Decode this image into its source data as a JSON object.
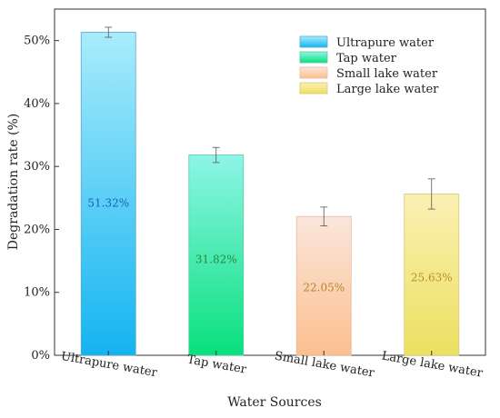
{
  "chart_data": {
    "type": "bar",
    "title": "",
    "xlabel": "Water Sources",
    "ylabel": "Degradation rate  (%)",
    "ylim": [
      0,
      55
    ],
    "yticks": [
      0,
      10,
      20,
      30,
      40,
      50
    ],
    "ytick_labels": [
      "0%",
      "10%",
      "20%",
      "30%",
      "40%",
      "50%"
    ],
    "categories": [
      "Ultrapure water",
      "Tap water",
      "Small lake water",
      "Large lake water"
    ],
    "values": [
      51.32,
      31.82,
      22.05,
      25.63
    ],
    "errors": [
      0.8,
      1.2,
      1.5,
      2.4
    ],
    "value_labels": [
      "51.32%",
      "31.82%",
      "22.05%",
      "25.63%"
    ],
    "legend": [
      "Ultrapure water",
      "Tap water",
      "Small lake water",
      "Large lake water"
    ],
    "legend_position": "top-right",
    "grid": false,
    "colors": {
      "ultrapure": {
        "top": "#a8ecfc",
        "bottom": "#14b4f0",
        "stroke": "#5aa8d0",
        "label": "#1a5fc0"
      },
      "tap": {
        "top": "#8ef5e6",
        "bottom": "#08e07c",
        "stroke": "#5ac8a8",
        "label": "#2a8a3a"
      },
      "small_lake": {
        "top": "#fbe6dc",
        "bottom": "#fbbf8e",
        "stroke": "#e8b89a",
        "label": "#b8862a"
      },
      "large_lake": {
        "top": "#fbf0b4",
        "bottom": "#ece060",
        "stroke": "#d8c878",
        "label": "#b8902a"
      }
    }
  }
}
